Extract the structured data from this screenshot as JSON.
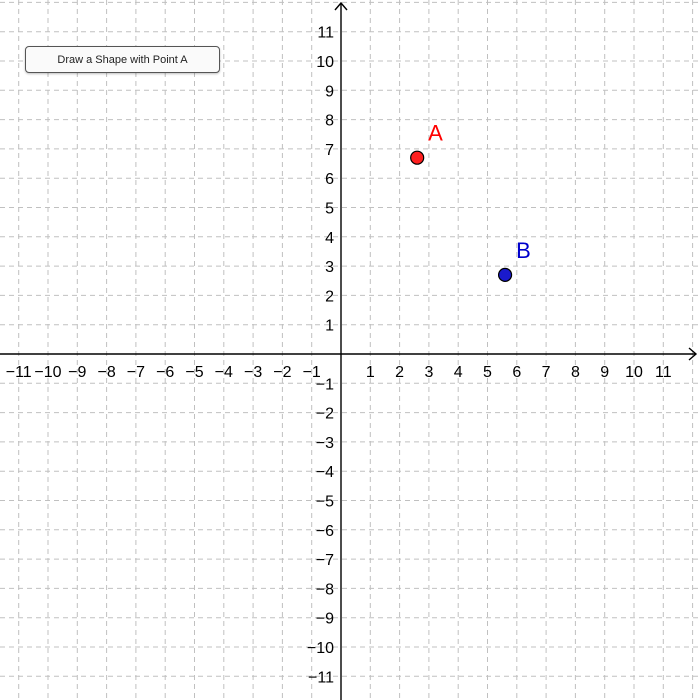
{
  "toolbar": {
    "action_button_label": "Draw a Shape with Point A"
  },
  "graph": {
    "x_range": [
      -11,
      11
    ],
    "y_range": [
      -11,
      11
    ],
    "grid": "dashed",
    "x_tick_labels": [
      "−11",
      "−10",
      "−9",
      "−8",
      "−7",
      "−6",
      "−5",
      "−4",
      "−3",
      "−2",
      "−1",
      "1",
      "2",
      "3",
      "4",
      "5",
      "6",
      "7",
      "8",
      "9",
      "10",
      "11"
    ],
    "y_tick_labels": [
      "11",
      "10",
      "9",
      "8",
      "7",
      "6",
      "5",
      "4",
      "3",
      "2",
      "1",
      "−1",
      "−2",
      "−3",
      "−4",
      "−5",
      "−6",
      "−7",
      "−8",
      "−9",
      "−10",
      "−11"
    ]
  },
  "points": [
    {
      "label": "A",
      "x": 2.6,
      "y": 6.7,
      "color": "#ff0000",
      "fill": "#ff2020"
    },
    {
      "label": "B",
      "x": 5.6,
      "y": 2.7,
      "color": "#0000cc",
      "fill": "#1a1acc"
    }
  ]
}
